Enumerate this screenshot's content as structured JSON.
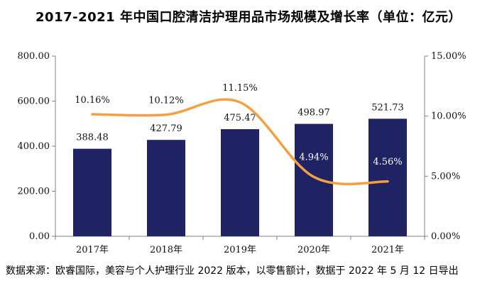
{
  "title": "2017-2021 年中国口腔清洁护理用品市场规模及增长率（单位：亿元）",
  "source": "数据来源：欧睿国际，美容与个人护理行业 2022 版本，以零售额计，数据于 2022 年 5 月 12 日导出",
  "colors": {
    "bar": "#1f2263",
    "line": "#f5a040",
    "axis": "#808080"
  },
  "chart_data": {
    "type": "bar+line",
    "title": "2017-2021 年中国口腔清洁护理用品市场规模及增长率（单位：亿元）",
    "categories": [
      "2017年",
      "2018年",
      "2019年",
      "2020年",
      "2021年"
    ],
    "series": [
      {
        "kind": "bar",
        "axis": "left",
        "values": [
          388.48,
          427.79,
          475.47,
          498.97,
          521.73
        ],
        "labels": [
          "388.48",
          "427.79",
          "475.47",
          "498.97",
          "521.73"
        ]
      },
      {
        "kind": "line",
        "axis": "right",
        "smooth": true,
        "values": [
          10.16,
          10.12,
          11.15,
          4.94,
          4.56
        ],
        "labels": [
          "10.16%",
          "10.12%",
          "11.15%",
          "4.94%",
          "4.56%"
        ]
      }
    ],
    "y_left": {
      "min": 0,
      "max": 800,
      "ticks": [
        "0.00",
        "200.00",
        "400.00",
        "600.00",
        "800.00"
      ]
    },
    "y_right": {
      "min": 0,
      "max": 15,
      "ticks": [
        "0.00%",
        "5.00%",
        "10.00%",
        "15.00%"
      ]
    },
    "grid": false,
    "legend": "none"
  }
}
